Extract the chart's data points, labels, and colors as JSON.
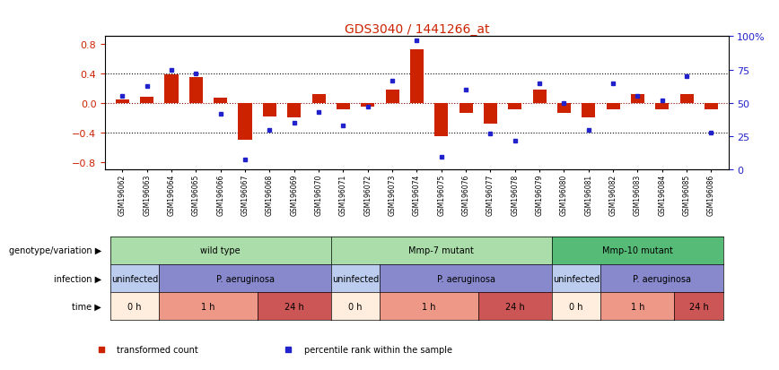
{
  "title": "GDS3040 / 1441266_at",
  "samples": [
    "GSM196062",
    "GSM196063",
    "GSM196064",
    "GSM196065",
    "GSM196066",
    "GSM196067",
    "GSM196068",
    "GSM196069",
    "GSM196070",
    "GSM196071",
    "GSM196072",
    "GSM196073",
    "GSM196074",
    "GSM196075",
    "GSM196076",
    "GSM196077",
    "GSM196078",
    "GSM196079",
    "GSM196080",
    "GSM196081",
    "GSM196082",
    "GSM196083",
    "GSM196084",
    "GSM196085",
    "GSM196086"
  ],
  "bar_values": [
    0.05,
    0.08,
    0.38,
    0.35,
    0.07,
    -0.5,
    -0.18,
    -0.2,
    0.12,
    -0.08,
    -0.05,
    0.18,
    0.72,
    -0.45,
    -0.13,
    -0.28,
    -0.08,
    0.18,
    -0.13,
    -0.2,
    -0.08,
    0.12,
    -0.08,
    0.12,
    -0.08
  ],
  "dot_values": [
    55,
    63,
    75,
    72,
    42,
    8,
    30,
    35,
    43,
    33,
    47,
    67,
    97,
    10,
    60,
    27,
    22,
    65,
    50,
    30,
    65,
    55,
    52,
    70,
    28
  ],
  "ylim_left": [
    -0.9,
    0.9
  ],
  "ylim_right": [
    0,
    100
  ],
  "yticks_left": [
    -0.8,
    -0.4,
    0.0,
    0.4,
    0.8
  ],
  "yticks_right": [
    0,
    25,
    50,
    75,
    100
  ],
  "bar_color": "#CC2200",
  "dot_color": "#2222CC",
  "title_color": "#CC2200",
  "genotype_groups": [
    {
      "label": "wild type",
      "start": 0,
      "end": 8,
      "color": "#AADDAA"
    },
    {
      "label": "Mmp-7 mutant",
      "start": 9,
      "end": 17,
      "color": "#AADDAA"
    },
    {
      "label": "Mmp-10 mutant",
      "start": 18,
      "end": 24,
      "color": "#55BB77"
    }
  ],
  "infection_groups": [
    {
      "label": "uninfected",
      "start": 0,
      "end": 1,
      "color": "#BBCCEE"
    },
    {
      "label": "P. aeruginosa",
      "start": 2,
      "end": 8,
      "color": "#8888CC"
    },
    {
      "label": "uninfected",
      "start": 9,
      "end": 10,
      "color": "#BBCCEE"
    },
    {
      "label": "P. aeruginosa",
      "start": 11,
      "end": 17,
      "color": "#8888CC"
    },
    {
      "label": "uninfected",
      "start": 18,
      "end": 19,
      "color": "#BBCCEE"
    },
    {
      "label": "P. aeruginosa",
      "start": 20,
      "end": 24,
      "color": "#8888CC"
    }
  ],
  "time_groups": [
    {
      "label": "0 h",
      "start": 0,
      "end": 1,
      "color": "#FFEEDD"
    },
    {
      "label": "1 h",
      "start": 2,
      "end": 5,
      "color": "#EE9988"
    },
    {
      "label": "24 h",
      "start": 6,
      "end": 8,
      "color": "#CC5555"
    },
    {
      "label": "0 h",
      "start": 9,
      "end": 10,
      "color": "#FFEEDD"
    },
    {
      "label": "1 h",
      "start": 11,
      "end": 14,
      "color": "#EE9988"
    },
    {
      "label": "24 h",
      "start": 15,
      "end": 17,
      "color": "#CC5555"
    },
    {
      "label": "0 h",
      "start": 18,
      "end": 19,
      "color": "#FFEEDD"
    },
    {
      "label": "1 h",
      "start": 20,
      "end": 22,
      "color": "#EE9988"
    },
    {
      "label": "24 h",
      "start": 23,
      "end": 24,
      "color": "#CC5555"
    }
  ],
  "row_labels": [
    "genotype/variation",
    "infection",
    "time"
  ],
  "legend_items": [
    {
      "label": "transformed count",
      "color": "#CC2200"
    },
    {
      "label": "percentile rank within the sample",
      "color": "#2222CC"
    }
  ]
}
